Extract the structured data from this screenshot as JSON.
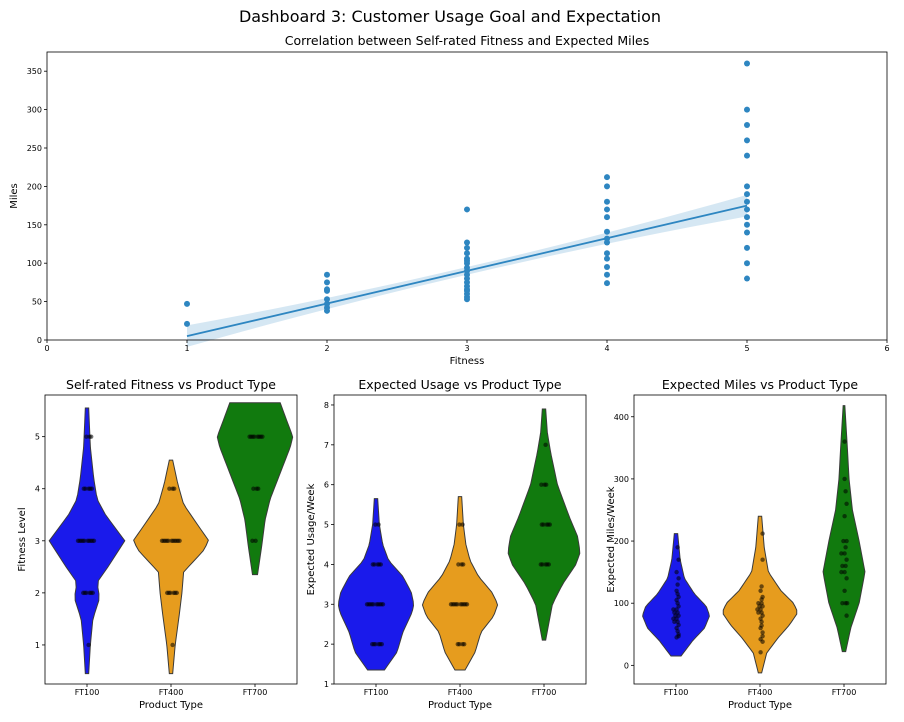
{
  "dashboard": {
    "title": "Dashboard 3: Customer Usage Goal and Expectation"
  },
  "chart_data": [
    {
      "type": "scatter",
      "title": "Correlation between Self-rated Fitness and Expected Miles",
      "xlabel": "Fitness",
      "ylabel": "Miles",
      "xlim": [
        0,
        6
      ],
      "ylim": [
        0,
        375
      ],
      "xticks": [
        0,
        1,
        2,
        3,
        4,
        5,
        6
      ],
      "yticks": [
        0,
        50,
        100,
        150,
        200,
        250,
        300,
        350
      ],
      "point_color": "#2e86c1",
      "line_color": "#2e86c1",
      "points": [
        {
          "x": 1,
          "y": 21
        },
        {
          "x": 1,
          "y": 47
        },
        {
          "x": 2,
          "y": 38
        },
        {
          "x": 2,
          "y": 42
        },
        {
          "x": 2,
          "y": 47
        },
        {
          "x": 2,
          "y": 53
        },
        {
          "x": 2,
          "y": 64
        },
        {
          "x": 2,
          "y": 66
        },
        {
          "x": 2,
          "y": 75
        },
        {
          "x": 2,
          "y": 85
        },
        {
          "x": 3,
          "y": 53
        },
        {
          "x": 3,
          "y": 56
        },
        {
          "x": 3,
          "y": 60
        },
        {
          "x": 3,
          "y": 64
        },
        {
          "x": 3,
          "y": 66
        },
        {
          "x": 3,
          "y": 70
        },
        {
          "x": 3,
          "y": 75
        },
        {
          "x": 3,
          "y": 80
        },
        {
          "x": 3,
          "y": 85
        },
        {
          "x": 3,
          "y": 90
        },
        {
          "x": 3,
          "y": 94
        },
        {
          "x": 3,
          "y": 100
        },
        {
          "x": 3,
          "y": 103
        },
        {
          "x": 3,
          "y": 106
        },
        {
          "x": 3,
          "y": 113
        },
        {
          "x": 3,
          "y": 120
        },
        {
          "x": 3,
          "y": 127
        },
        {
          "x": 3,
          "y": 170
        },
        {
          "x": 4,
          "y": 74
        },
        {
          "x": 4,
          "y": 85
        },
        {
          "x": 4,
          "y": 95
        },
        {
          "x": 4,
          "y": 106
        },
        {
          "x": 4,
          "y": 113
        },
        {
          "x": 4,
          "y": 127
        },
        {
          "x": 4,
          "y": 132
        },
        {
          "x": 4,
          "y": 141
        },
        {
          "x": 4,
          "y": 160
        },
        {
          "x": 4,
          "y": 170
        },
        {
          "x": 4,
          "y": 180
        },
        {
          "x": 4,
          "y": 200
        },
        {
          "x": 4,
          "y": 212
        },
        {
          "x": 5,
          "y": 80
        },
        {
          "x": 5,
          "y": 100
        },
        {
          "x": 5,
          "y": 120
        },
        {
          "x": 5,
          "y": 140
        },
        {
          "x": 5,
          "y": 150
        },
        {
          "x": 5,
          "y": 160
        },
        {
          "x": 5,
          "y": 170
        },
        {
          "x": 5,
          "y": 180
        },
        {
          "x": 5,
          "y": 190
        },
        {
          "x": 5,
          "y": 200
        },
        {
          "x": 5,
          "y": 240
        },
        {
          "x": 5,
          "y": 260
        },
        {
          "x": 5,
          "y": 280
        },
        {
          "x": 5,
          "y": 300
        },
        {
          "x": 5,
          "y": 360
        }
      ],
      "regression": {
        "x": [
          1,
          5
        ],
        "y": [
          5,
          175
        ],
        "ci_half_width_at_ends": 14,
        "ci_half_width_at_center": 5
      }
    },
    {
      "type": "violin",
      "title": "Self-rated Fitness vs Product Type",
      "xlabel": "Product Type",
      "ylabel": "Fitness Level",
      "categories": [
        "FT100",
        "FT400",
        "FT700"
      ],
      "colors": [
        "#1a1aeb",
        "#e69c1e",
        "#117a0e"
      ],
      "ylim": [
        0.25,
        5.8
      ],
      "yticks": [
        1,
        2,
        3,
        4,
        5
      ],
      "violins": [
        {
          "lo": 0.45,
          "hi": 5.55,
          "profile": [
            [
              0.45,
              0.02
            ],
            [
              1.0,
              0.04
            ],
            [
              1.5,
              0.07
            ],
            [
              1.9,
              0.15
            ],
            [
              2.2,
              0.12
            ],
            [
              2.5,
              0.25
            ],
            [
              3.0,
              0.45
            ],
            [
              3.5,
              0.22
            ],
            [
              3.8,
              0.12
            ],
            [
              4.2,
              0.08
            ],
            [
              4.8,
              0.04
            ],
            [
              5.55,
              0.02
            ]
          ]
        },
        {
          "lo": 0.45,
          "hi": 4.55,
          "profile": [
            [
              0.45,
              0.02
            ],
            [
              1.0,
              0.05
            ],
            [
              1.6,
              0.1
            ],
            [
              2.0,
              0.13
            ],
            [
              2.4,
              0.15
            ],
            [
              2.8,
              0.38
            ],
            [
              3.0,
              0.45
            ],
            [
              3.3,
              0.32
            ],
            [
              3.7,
              0.15
            ],
            [
              4.1,
              0.08
            ],
            [
              4.55,
              0.02
            ]
          ]
        },
        {
          "lo": 2.35,
          "hi": 5.65,
          "profile": [
            [
              2.35,
              0.03
            ],
            [
              2.9,
              0.08
            ],
            [
              3.4,
              0.12
            ],
            [
              3.8,
              0.18
            ],
            [
              4.3,
              0.3
            ],
            [
              4.8,
              0.42
            ],
            [
              5.0,
              0.45
            ],
            [
              5.3,
              0.38
            ],
            [
              5.65,
              0.3
            ]
          ]
        }
      ],
      "strip": [
        [
          5,
          5,
          5,
          4,
          4,
          4,
          4,
          4,
          3,
          3,
          3,
          3,
          3,
          3,
          3,
          3,
          3,
          3,
          2,
          2,
          2,
          2,
          2,
          2,
          1
        ],
        [
          4,
          4,
          4,
          3,
          3,
          3,
          3,
          3,
          3,
          3,
          3,
          3,
          3,
          3,
          2,
          2,
          2,
          2,
          2,
          2,
          1
        ],
        [
          5,
          5,
          5,
          5,
          5,
          5,
          5,
          5,
          4,
          4,
          4,
          3,
          3
        ]
      ]
    },
    {
      "type": "violin",
      "title": "Expected Usage vs Product Type",
      "xlabel": "Product Type",
      "ylabel": "Expected Usage/Week",
      "categories": [
        "FT100",
        "FT400",
        "FT700"
      ],
      "colors": [
        "#1a1aeb",
        "#e69c1e",
        "#117a0e"
      ],
      "ylim": [
        1,
        8.25
      ],
      "yticks": [
        1,
        2,
        3,
        4,
        5,
        6,
        7,
        8
      ],
      "violins": [
        {
          "lo": 1.35,
          "hi": 5.65,
          "profile": [
            [
              1.35,
              0.1
            ],
            [
              1.8,
              0.25
            ],
            [
              2.3,
              0.32
            ],
            [
              2.8,
              0.43
            ],
            [
              3.0,
              0.45
            ],
            [
              3.3,
              0.42
            ],
            [
              3.7,
              0.32
            ],
            [
              4.1,
              0.15
            ],
            [
              4.5,
              0.08
            ],
            [
              5.0,
              0.04
            ],
            [
              5.65,
              0.02
            ]
          ]
        },
        {
          "lo": 1.35,
          "hi": 5.7,
          "profile": [
            [
              1.35,
              0.06
            ],
            [
              1.8,
              0.18
            ],
            [
              2.3,
              0.25
            ],
            [
              2.7,
              0.4
            ],
            [
              3.0,
              0.45
            ],
            [
              3.3,
              0.38
            ],
            [
              3.7,
              0.22
            ],
            [
              4.1,
              0.12
            ],
            [
              4.5,
              0.07
            ],
            [
              5.0,
              0.04
            ],
            [
              5.7,
              0.02
            ]
          ]
        },
        {
          "lo": 2.1,
          "hi": 7.9,
          "profile": [
            [
              2.1,
              0.02
            ],
            [
              3.0,
              0.1
            ],
            [
              3.5,
              0.22
            ],
            [
              4.0,
              0.38
            ],
            [
              4.3,
              0.43
            ],
            [
              4.7,
              0.4
            ],
            [
              5.2,
              0.3
            ],
            [
              6.0,
              0.16
            ],
            [
              6.8,
              0.08
            ],
            [
              7.3,
              0.04
            ],
            [
              7.9,
              0.02
            ]
          ]
        }
      ],
      "strip": [
        [
          5,
          5,
          4,
          4,
          4,
          4,
          4,
          3,
          3,
          3,
          3,
          3,
          3,
          3,
          3,
          3,
          3,
          2,
          2,
          2,
          2,
          2,
          2
        ],
        [
          5,
          5,
          4,
          4,
          4,
          3,
          3,
          3,
          3,
          3,
          3,
          3,
          3,
          3,
          3,
          2,
          2,
          2,
          2
        ],
        [
          7,
          6,
          6,
          6,
          5,
          5,
          5,
          5,
          5,
          4,
          4,
          4,
          4,
          4
        ]
      ]
    },
    {
      "type": "violin",
      "title": "Expected Miles vs Product Type",
      "xlabel": "Product Type",
      "ylabel": "Expected Miles/Week",
      "categories": [
        "FT100",
        "FT400",
        "FT700"
      ],
      "colors": [
        "#1a1aeb",
        "#e69c1e",
        "#117a0e"
      ],
      "ylim": [
        -30,
        435
      ],
      "yticks": [
        0,
        100,
        200,
        300,
        400
      ],
      "violins": [
        {
          "lo": 15,
          "hi": 212,
          "profile": [
            [
              15,
              0.06
            ],
            [
              40,
              0.2
            ],
            [
              60,
              0.34
            ],
            [
              80,
              0.4
            ],
            [
              95,
              0.36
            ],
            [
              115,
              0.22
            ],
            [
              140,
              0.1
            ],
            [
              170,
              0.05
            ],
            [
              212,
              0.02
            ]
          ]
        },
        {
          "lo": -12,
          "hi": 240,
          "profile": [
            [
              -12,
              0.02
            ],
            [
              20,
              0.08
            ],
            [
              45,
              0.22
            ],
            [
              65,
              0.35
            ],
            [
              85,
              0.45
            ],
            [
              100,
              0.4
            ],
            [
              120,
              0.25
            ],
            [
              150,
              0.1
            ],
            [
              190,
              0.05
            ],
            [
              240,
              0.02
            ]
          ]
        },
        {
          "lo": 22,
          "hi": 418,
          "profile": [
            [
              22,
              0.02
            ],
            [
              60,
              0.08
            ],
            [
              100,
              0.18
            ],
            [
              150,
              0.25
            ],
            [
              200,
              0.18
            ],
            [
              250,
              0.1
            ],
            [
              300,
              0.06
            ],
            [
              350,
              0.04
            ],
            [
              418,
              0.01
            ]
          ]
        }
      ],
      "strip": [
        [
          190,
          170,
          150,
          140,
          130,
          120,
          115,
          110,
          105,
          100,
          95,
          90,
          90,
          85,
          85,
          80,
          80,
          75,
          75,
          70,
          70,
          65,
          60,
          55,
          50,
          47,
          45
        ],
        [
          212,
          170,
          127,
          120,
          110,
          106,
          100,
          100,
          95,
          95,
          90,
          90,
          85,
          85,
          80,
          75,
          70,
          64,
          60,
          53,
          47,
          42,
          38,
          21
        ],
        [
          360,
          300,
          280,
          260,
          240,
          200,
          200,
          190,
          180,
          180,
          170,
          160,
          160,
          150,
          150,
          140,
          120,
          100,
          100,
          100,
          80
        ]
      ]
    }
  ]
}
